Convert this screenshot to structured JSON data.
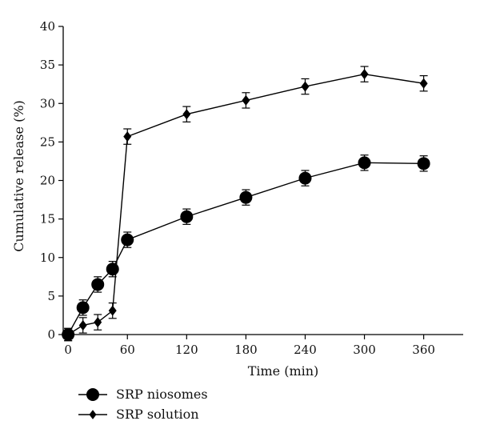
{
  "chart_data": {
    "type": "line",
    "title": "",
    "xlabel": "Time (min)",
    "ylabel": "Cumulative release (%)",
    "xlim": [
      -5,
      400
    ],
    "ylim": [
      0,
      40
    ],
    "xticks": [
      0,
      60,
      120,
      180,
      240,
      300,
      360
    ],
    "yticks": [
      0,
      5,
      10,
      15,
      20,
      25,
      30,
      35,
      40
    ],
    "grid": false,
    "legend_position": "bottom-left",
    "series": [
      {
        "name": "SRP niosomes",
        "marker": "circle",
        "color": "#000000",
        "x": [
          0,
          15,
          30,
          45,
          60,
          120,
          180,
          240,
          300,
          360
        ],
        "y": [
          0,
          3.5,
          6.5,
          8.5,
          12.3,
          15.3,
          17.8,
          20.3,
          22.3,
          22.2
        ],
        "error": [
          0.8,
          1.0,
          1.0,
          1.0,
          1.0,
          1.0,
          1.0,
          1.0,
          1.0,
          1.0
        ]
      },
      {
        "name": "SRP solution",
        "marker": "diamond",
        "color": "#000000",
        "x": [
          0,
          15,
          30,
          45,
          60,
          120,
          180,
          240,
          300,
          360
        ],
        "y": [
          0,
          1.2,
          1.6,
          3.1,
          25.7,
          28.6,
          30.4,
          32.2,
          33.8,
          32.6
        ],
        "error": [
          0.8,
          1.0,
          1.0,
          1.0,
          1.0,
          1.0,
          1.0,
          1.0,
          1.0,
          1.0
        ]
      }
    ]
  }
}
